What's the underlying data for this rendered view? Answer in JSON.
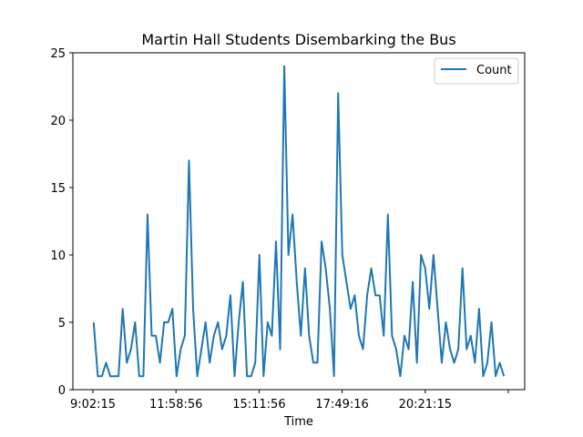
{
  "chart_data": {
    "type": "line",
    "title": "Martin Hall Students Disembarking the Bus",
    "xlabel": "Time",
    "ylabel": "",
    "ylim": [
      0,
      25
    ],
    "yticks": [
      0,
      5,
      10,
      15,
      20,
      25
    ],
    "xticks": [
      "9:02:15",
      "11:58:56",
      "15:11:56",
      "17:49:16",
      "20:21:15",
      ""
    ],
    "legend_position": "top-right",
    "grid": false,
    "color": "#1f77b4",
    "series": [
      {
        "name": "Count",
        "values": [
          5,
          1,
          1,
          2,
          1,
          1,
          1,
          6,
          2,
          3,
          5,
          1,
          1,
          13,
          4,
          4,
          2,
          5,
          5,
          6,
          1,
          3,
          4,
          17,
          6,
          1,
          3,
          5,
          2,
          4,
          5,
          3,
          4,
          7,
          1,
          5,
          8,
          1,
          1,
          2,
          10,
          1,
          5,
          4,
          11,
          3,
          24,
          10,
          13,
          8,
          4,
          9,
          4,
          2,
          2,
          11,
          9,
          6,
          1,
          22,
          10,
          8,
          6,
          7,
          4,
          3,
          7,
          9,
          7,
          7,
          4,
          13,
          4,
          3,
          1,
          4,
          3,
          8,
          2,
          10,
          9,
          6,
          10,
          6,
          2,
          5,
          3,
          2,
          3,
          9,
          3,
          4,
          2,
          6,
          1,
          2,
          5,
          1,
          2,
          1
        ]
      }
    ]
  }
}
